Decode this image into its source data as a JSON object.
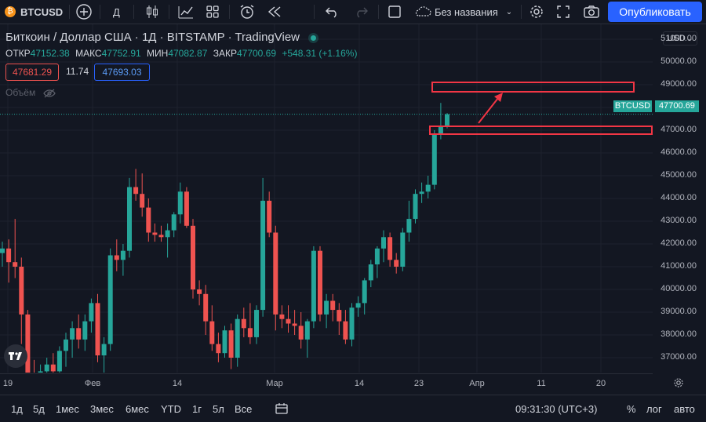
{
  "toolbar": {
    "symbol": "BTCUSD",
    "interval": "Д",
    "layout_name": "Без названия",
    "publish_label": "Опубликовать"
  },
  "legend": {
    "title": "Биткоин / Доллар США · 1Д · BITSTAMP · TradingView",
    "open_label": "ОТКР",
    "open_value": "47152.38",
    "high_label": "МАКС",
    "high_value": "47752.91",
    "low_label": "МИН",
    "low_value": "47082.87",
    "close_label": "ЗАКР",
    "close_value": "47700.69",
    "change": "+548.31 (+1.16%)",
    "bid": "47681.29",
    "spread": "11.74",
    "ask": "47693.03",
    "volume_label": "Объём"
  },
  "yaxis": {
    "currency": "USD",
    "ticks": [
      "51000.00",
      "50000.00",
      "49000.00",
      "48000.00",
      "47000.00",
      "46000.00",
      "45000.00",
      "44000.00",
      "43000.00",
      "42000.00",
      "41000.00",
      "40000.00",
      "39000.00",
      "38000.00",
      "37000.00"
    ],
    "symbol_tag": "BTCUSD",
    "last_price": "47700.69"
  },
  "xaxis": {
    "ticks": [
      "19",
      "Фев",
      "14",
      "Мар",
      "14",
      "23",
      "Апр",
      "11",
      "20"
    ]
  },
  "bottom": {
    "ranges": [
      "1д",
      "5д",
      "1мес",
      "3мес",
      "6мес",
      "YTD",
      "1г",
      "5л",
      "Все"
    ],
    "time": "09:31:30 (UTC+3)",
    "percent": "%",
    "log": "лог",
    "auto": "авто"
  },
  "colors": {
    "up": "#26a69a",
    "down": "#ef5350",
    "bg": "#131722",
    "annotation": "#f23645",
    "accent": "#2962ff"
  },
  "chart_data": {
    "type": "candlestick",
    "symbol": "BTCUSD",
    "price_range": [
      36000,
      51000
    ],
    "last_price": 47700.69,
    "candles": [
      {
        "o": 41600,
        "h": 42100,
        "l": 41000,
        "c": 41800
      },
      {
        "o": 41800,
        "h": 42200,
        "l": 40300,
        "c": 41200
      },
      {
        "o": 41200,
        "h": 43100,
        "l": 40500,
        "c": 41000
      },
      {
        "o": 41000,
        "h": 41400,
        "l": 37600,
        "c": 38900
      },
      {
        "o": 38900,
        "h": 39100,
        "l": 35600,
        "c": 36300
      },
      {
        "o": 36300,
        "h": 36900,
        "l": 34700,
        "c": 35800
      },
      {
        "o": 35800,
        "h": 36700,
        "l": 35000,
        "c": 36400
      },
      {
        "o": 36400,
        "h": 37000,
        "l": 35600,
        "c": 36700
      },
      {
        "o": 36700,
        "h": 37200,
        "l": 35800,
        "c": 36400
      },
      {
        "o": 36400,
        "h": 37500,
        "l": 36000,
        "c": 37300
      },
      {
        "o": 37300,
        "h": 38100,
        "l": 36600,
        "c": 37800
      },
      {
        "o": 37800,
        "h": 38600,
        "l": 37000,
        "c": 38300
      },
      {
        "o": 38300,
        "h": 38900,
        "l": 37400,
        "c": 37800
      },
      {
        "o": 37800,
        "h": 38900,
        "l": 37300,
        "c": 38600
      },
      {
        "o": 38600,
        "h": 39600,
        "l": 38100,
        "c": 39400
      },
      {
        "o": 39400,
        "h": 39800,
        "l": 36800,
        "c": 37100
      },
      {
        "o": 37100,
        "h": 37900,
        "l": 36300,
        "c": 37600
      },
      {
        "o": 37600,
        "h": 41800,
        "l": 37300,
        "c": 41500
      },
      {
        "o": 41500,
        "h": 42200,
        "l": 40800,
        "c": 41300
      },
      {
        "o": 41300,
        "h": 42000,
        "l": 40600,
        "c": 41700
      },
      {
        "o": 41700,
        "h": 44900,
        "l": 41400,
        "c": 44500
      },
      {
        "o": 44500,
        "h": 45300,
        "l": 43900,
        "c": 44200
      },
      {
        "o": 44200,
        "h": 45100,
        "l": 43200,
        "c": 43600
      },
      {
        "o": 43600,
        "h": 44000,
        "l": 42100,
        "c": 42500
      },
      {
        "o": 42500,
        "h": 42900,
        "l": 42100,
        "c": 42400
      },
      {
        "o": 42400,
        "h": 42800,
        "l": 42100,
        "c": 42300
      },
      {
        "o": 42300,
        "h": 42900,
        "l": 41400,
        "c": 42600
      },
      {
        "o": 42600,
        "h": 43400,
        "l": 42300,
        "c": 43300
      },
      {
        "o": 43300,
        "h": 44700,
        "l": 42900,
        "c": 44300
      },
      {
        "o": 44300,
        "h": 44500,
        "l": 42700,
        "c": 42800
      },
      {
        "o": 42800,
        "h": 43100,
        "l": 39600,
        "c": 40000
      },
      {
        "o": 40000,
        "h": 40400,
        "l": 39300,
        "c": 39800
      },
      {
        "o": 39800,
        "h": 40200,
        "l": 38000,
        "c": 38600
      },
      {
        "o": 38600,
        "h": 39300,
        "l": 37300,
        "c": 37600
      },
      {
        "o": 37600,
        "h": 38100,
        "l": 36800,
        "c": 37200
      },
      {
        "o": 37200,
        "h": 38400,
        "l": 37000,
        "c": 38200
      },
      {
        "o": 38200,
        "h": 38500,
        "l": 36500,
        "c": 37000
      },
      {
        "o": 37000,
        "h": 38900,
        "l": 36600,
        "c": 38700
      },
      {
        "o": 38700,
        "h": 39200,
        "l": 37900,
        "c": 38300
      },
      {
        "o": 38300,
        "h": 39400,
        "l": 37600,
        "c": 37900
      },
      {
        "o": 37900,
        "h": 39300,
        "l": 37600,
        "c": 39100
      },
      {
        "o": 39100,
        "h": 44900,
        "l": 38800,
        "c": 43900
      },
      {
        "o": 43900,
        "h": 44300,
        "l": 42300,
        "c": 42500
      },
      {
        "o": 42500,
        "h": 42800,
        "l": 38200,
        "c": 38900
      },
      {
        "o": 38900,
        "h": 39300,
        "l": 38300,
        "c": 38700
      },
      {
        "o": 38700,
        "h": 39300,
        "l": 38100,
        "c": 38500
      },
      {
        "o": 38500,
        "h": 39100,
        "l": 38000,
        "c": 38400
      },
      {
        "o": 38400,
        "h": 39000,
        "l": 37400,
        "c": 37800
      },
      {
        "o": 37800,
        "h": 38700,
        "l": 37000,
        "c": 38600
      },
      {
        "o": 38600,
        "h": 41900,
        "l": 38300,
        "c": 41700
      },
      {
        "o": 41700,
        "h": 41900,
        "l": 38600,
        "c": 38900
      },
      {
        "o": 38900,
        "h": 39800,
        "l": 38300,
        "c": 39500
      },
      {
        "o": 39500,
        "h": 39800,
        "l": 38600,
        "c": 39100
      },
      {
        "o": 39100,
        "h": 39400,
        "l": 38000,
        "c": 38600
      },
      {
        "o": 38600,
        "h": 39100,
        "l": 37600,
        "c": 37800
      },
      {
        "o": 37800,
        "h": 39400,
        "l": 37500,
        "c": 39200
      },
      {
        "o": 39200,
        "h": 39700,
        "l": 38800,
        "c": 39400
      },
      {
        "o": 39400,
        "h": 40500,
        "l": 38900,
        "c": 40400
      },
      {
        "o": 40400,
        "h": 41300,
        "l": 40100,
        "c": 41100
      },
      {
        "o": 41100,
        "h": 41900,
        "l": 40500,
        "c": 41800
      },
      {
        "o": 41800,
        "h": 42600,
        "l": 41200,
        "c": 42300
      },
      {
        "o": 42300,
        "h": 42500,
        "l": 41000,
        "c": 41300
      },
      {
        "o": 41300,
        "h": 41600,
        "l": 40700,
        "c": 41000
      },
      {
        "o": 41000,
        "h": 42700,
        "l": 40800,
        "c": 42500
      },
      {
        "o": 42500,
        "h": 43900,
        "l": 42100,
        "c": 43100
      },
      {
        "o": 43100,
        "h": 44400,
        "l": 42900,
        "c": 44200
      },
      {
        "o": 44200,
        "h": 44700,
        "l": 43800,
        "c": 44300
      },
      {
        "o": 44300,
        "h": 45000,
        "l": 44000,
        "c": 44600
      },
      {
        "o": 44600,
        "h": 47000,
        "l": 44400,
        "c": 46800
      },
      {
        "o": 46800,
        "h": 48200,
        "l": 46600,
        "c": 47150
      },
      {
        "o": 47152.38,
        "h": 47752.91,
        "l": 47082.87,
        "c": 47700.69
      }
    ]
  }
}
